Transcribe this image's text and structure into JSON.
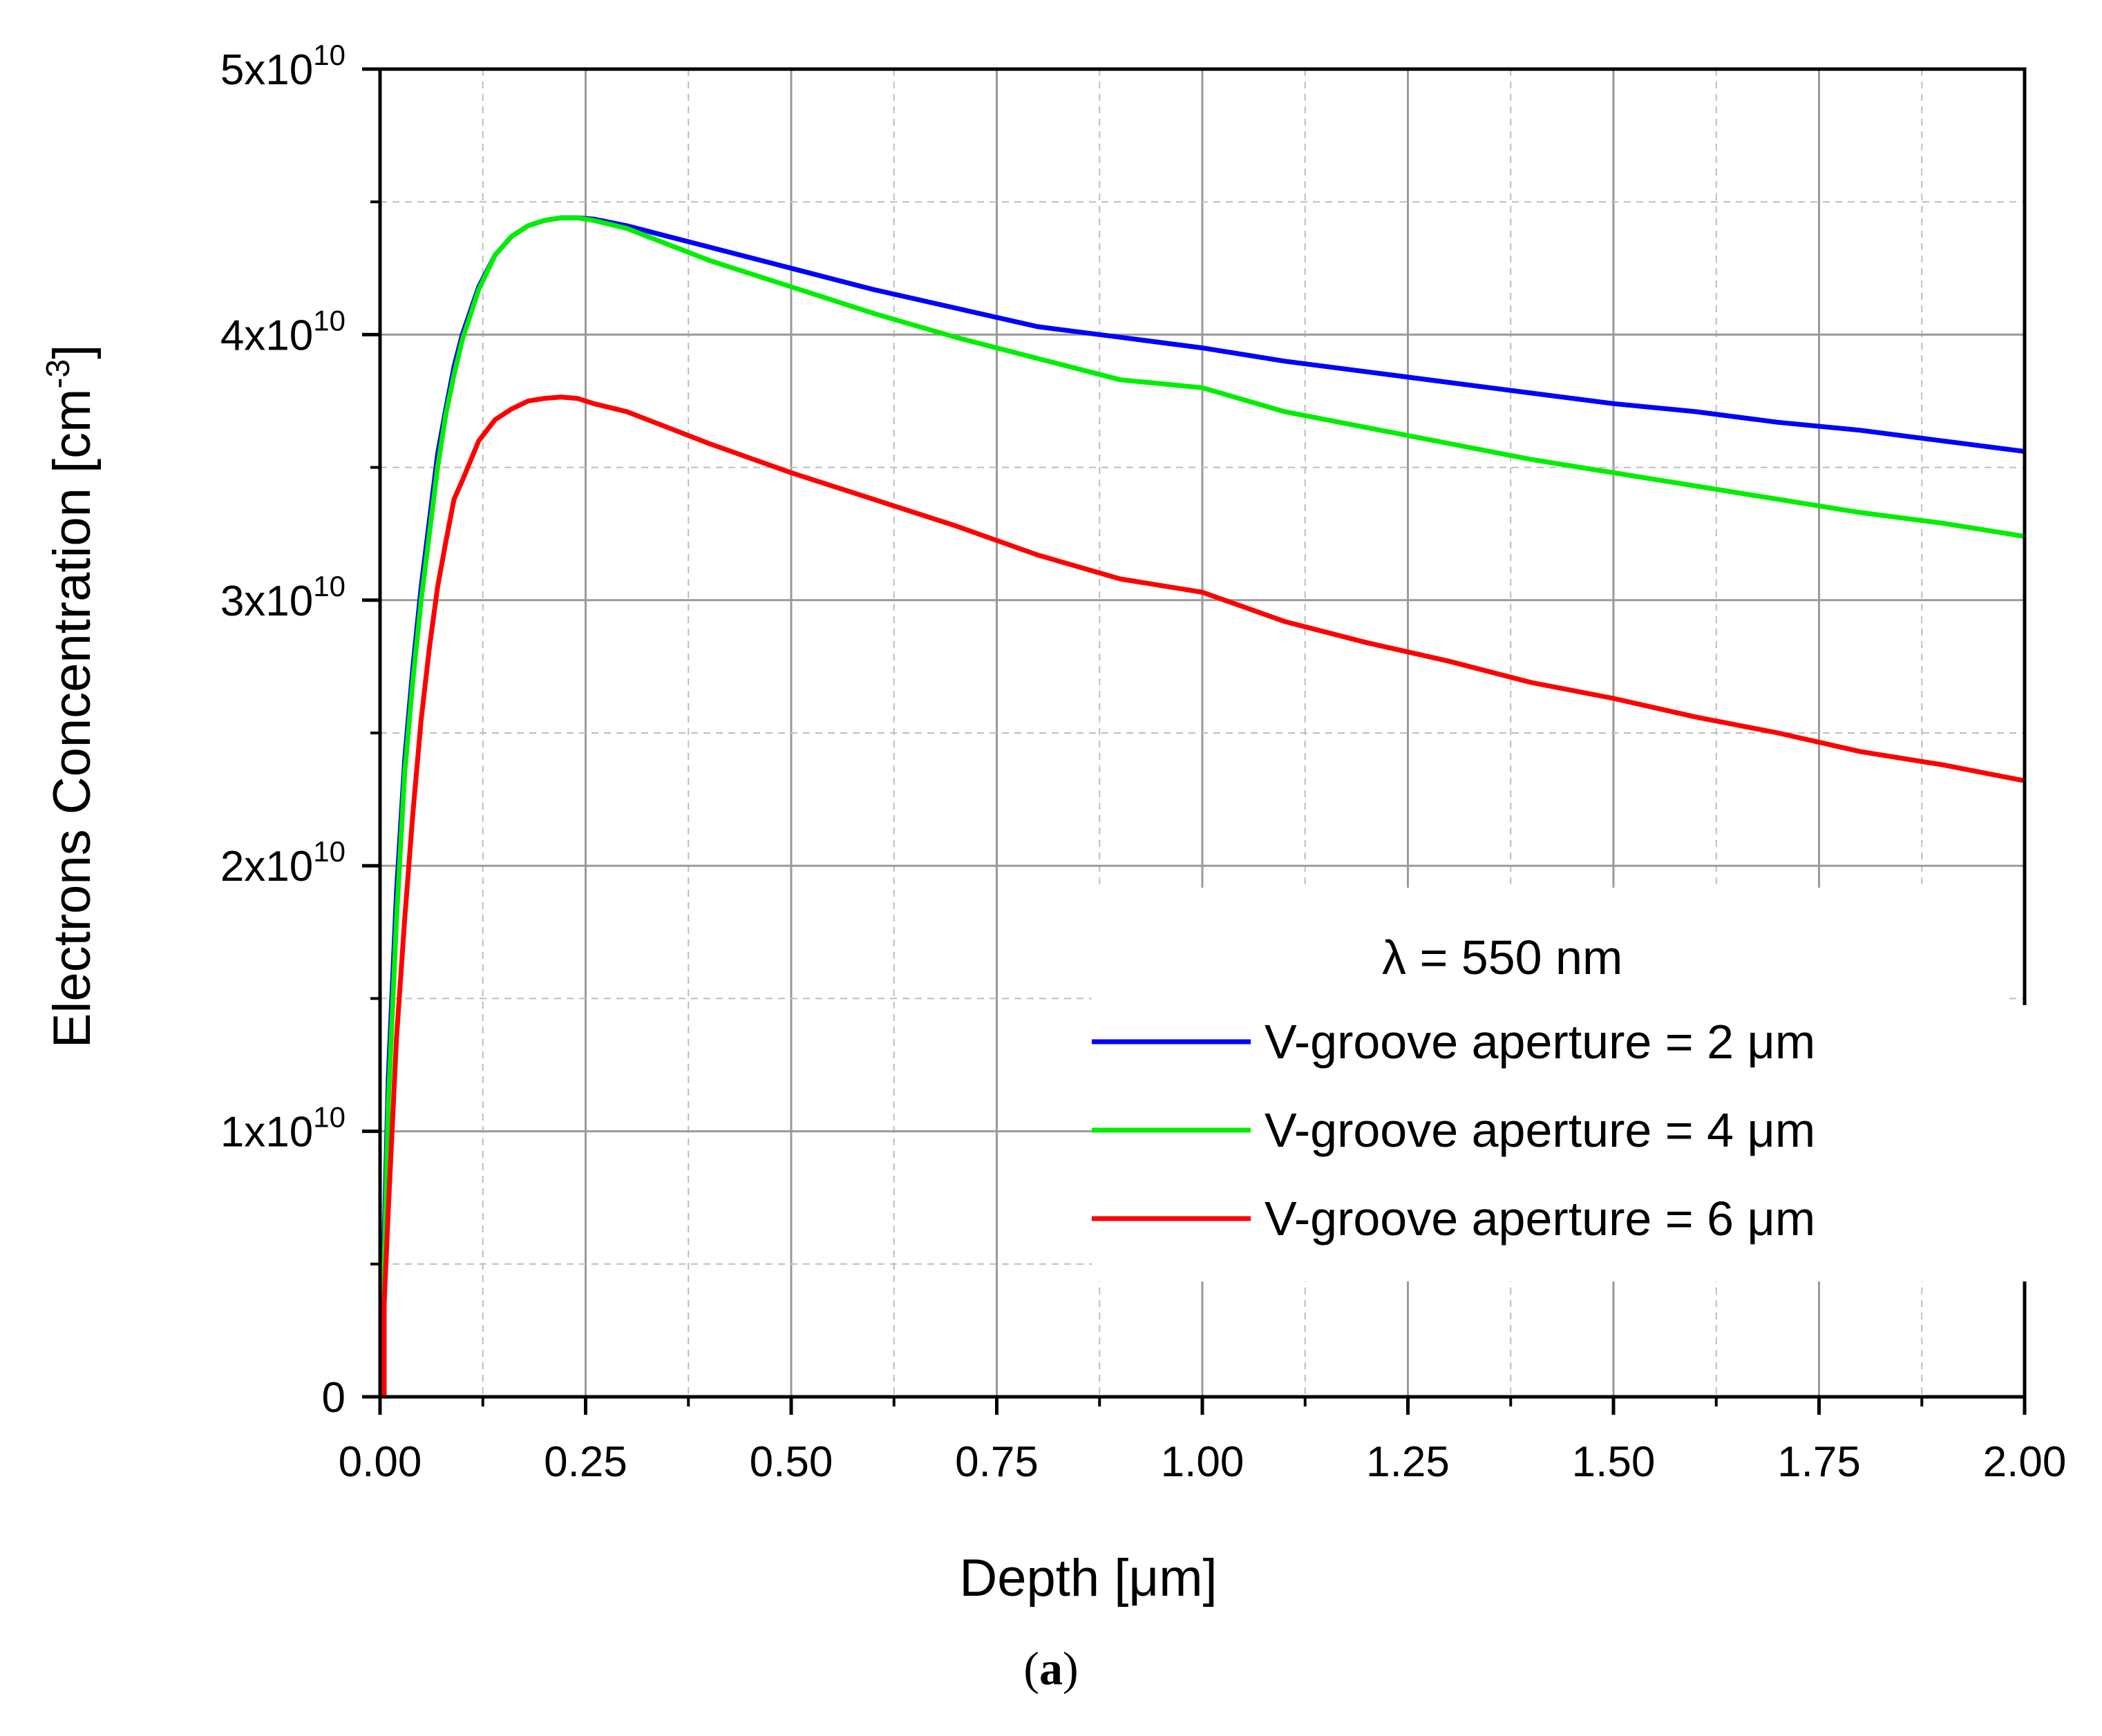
{
  "chart_data": {
    "type": "line",
    "title": "",
    "xlabel": "Depth [μm]",
    "ylabel_base": "Electrons Concentration [cm",
    "ylabel_exp": "-3",
    "ylabel_close": "]",
    "xlim": [
      0,
      2
    ],
    "ylim": [
      0,
      50000000000.0
    ],
    "grid": true,
    "x_ticks": [
      0,
      0.25,
      0.5,
      0.75,
      1.0,
      1.25,
      1.5,
      1.75,
      2.0
    ],
    "x_tick_labels": [
      "0.00",
      "0.25",
      "0.50",
      "0.75",
      "1.00",
      "1.25",
      "1.50",
      "1.75",
      "2.00"
    ],
    "y_ticks": [
      {
        "value": 0,
        "base": "0",
        "exp": ""
      },
      {
        "value": 10000000000.0,
        "base": "1x10",
        "exp": "10"
      },
      {
        "value": 20000000000.0,
        "base": "2x10",
        "exp": "10"
      },
      {
        "value": 30000000000.0,
        "base": "3x10",
        "exp": "10"
      },
      {
        "value": 40000000000.0,
        "base": "4x10",
        "exp": "10"
      },
      {
        "value": 50000000000.0,
        "base": "5x10",
        "exp": "10"
      }
    ],
    "annotation": "λ = 550 nm",
    "legend_position": "lower-right",
    "series": [
      {
        "name": "V-groove aperture = 2 μm",
        "color": "#0000ff",
        "x": [
          0.005,
          0.01,
          0.02,
          0.03,
          0.04,
          0.05,
          0.06,
          0.07,
          0.08,
          0.09,
          0.1,
          0.12,
          0.14,
          0.16,
          0.18,
          0.2,
          0.22,
          0.24,
          0.26,
          0.3,
          0.35,
          0.4,
          0.5,
          0.6,
          0.7,
          0.8,
          0.9,
          1.0,
          1.1,
          1.2,
          1.3,
          1.4,
          1.5,
          1.6,
          1.7,
          1.8,
          1.9,
          2.0
        ],
        "y": [
          6000000000.0,
          12000000000.0,
          19000000000.0,
          24000000000.0,
          27500000000.0,
          30500000000.0,
          33000000000.0,
          35500000000.0,
          37200000000.0,
          38800000000.0,
          40000000000.0,
          41800000000.0,
          43000000000.0,
          43700000000.0,
          44100000000.0,
          44300000000.0,
          44400000000.0,
          44400000000.0,
          44350000000.0,
          44100000000.0,
          43700000000.0,
          43300000000.0,
          42500000000.0,
          41700000000.0,
          41000000000.0,
          40300000000.0,
          39900000000.0,
          39500000000.0,
          39000000000.0,
          38600000000.0,
          38200000000.0,
          37800000000.0,
          37400000000.0,
          37100000000.0,
          36700000000.0,
          36400000000.0,
          36000000000.0,
          35600000000.0
        ]
      },
      {
        "name": "V-groove aperture = 4 μm",
        "color": "#00ee00",
        "x": [
          0.005,
          0.01,
          0.02,
          0.03,
          0.04,
          0.05,
          0.06,
          0.07,
          0.08,
          0.09,
          0.1,
          0.12,
          0.14,
          0.16,
          0.18,
          0.2,
          0.22,
          0.24,
          0.26,
          0.3,
          0.35,
          0.4,
          0.5,
          0.6,
          0.7,
          0.8,
          0.9,
          1.0,
          1.1,
          1.2,
          1.3,
          1.4,
          1.5,
          1.6,
          1.7,
          1.8,
          1.9,
          2.0
        ],
        "y": [
          5000000000.0,
          11000000000.0,
          18000000000.0,
          23500000000.0,
          27000000000.0,
          30000000000.0,
          32500000000.0,
          35000000000.0,
          37000000000.0,
          38500000000.0,
          39800000000.0,
          41700000000.0,
          43000000000.0,
          43700000000.0,
          44100000000.0,
          44300000000.0,
          44400000000.0,
          44400000000.0,
          44300000000.0,
          44000000000.0,
          43400000000.0,
          42800000000.0,
          41800000000.0,
          40800000000.0,
          39900000000.0,
          39100000000.0,
          38300000000.0,
          38000000000.0,
          37100000000.0,
          36500000000.0,
          35900000000.0,
          35300000000.0,
          34800000000.0,
          34300000000.0,
          33800000000.0,
          33300000000.0,
          32900000000.0,
          32400000000.0
        ]
      },
      {
        "name": "V-groove aperture = 6 μm",
        "color": "#ff0000",
        "x": [
          0.005,
          0.01,
          0.02,
          0.03,
          0.04,
          0.05,
          0.06,
          0.07,
          0.08,
          0.09,
          0.1,
          0.12,
          0.14,
          0.16,
          0.18,
          0.2,
          0.22,
          0.24,
          0.26,
          0.3,
          0.35,
          0.4,
          0.5,
          0.6,
          0.7,
          0.8,
          0.9,
          1.0,
          1.1,
          1.2,
          1.3,
          1.4,
          1.5,
          1.6,
          1.7,
          1.8,
          1.9,
          2.0
        ],
        "y": [
          3500000000.0,
          7000000000.0,
          13500000000.0,
          18000000000.0,
          22000000000.0,
          25500000000.0,
          28200000000.0,
          30500000000.0,
          32200000000.0,
          33800000000.0,
          34500000000.0,
          36000000000.0,
          36800000000.0,
          37200000000.0,
          37500000000.0,
          37600000000.0,
          37650000000.0,
          37600000000.0,
          37400000000.0,
          37100000000.0,
          36500000000.0,
          35900000000.0,
          34800000000.0,
          33800000000.0,
          32800000000.0,
          31700000000.0,
          30800000000.0,
          30300000000.0,
          29200000000.0,
          28400000000.0,
          27700000000.0,
          26900000000.0,
          26300000000.0,
          25600000000.0,
          25000000000.0,
          24300000000.0,
          23800000000.0,
          23200000000.0
        ]
      }
    ]
  },
  "caption": {
    "open": "(",
    "letter": "a",
    "close": ")"
  }
}
